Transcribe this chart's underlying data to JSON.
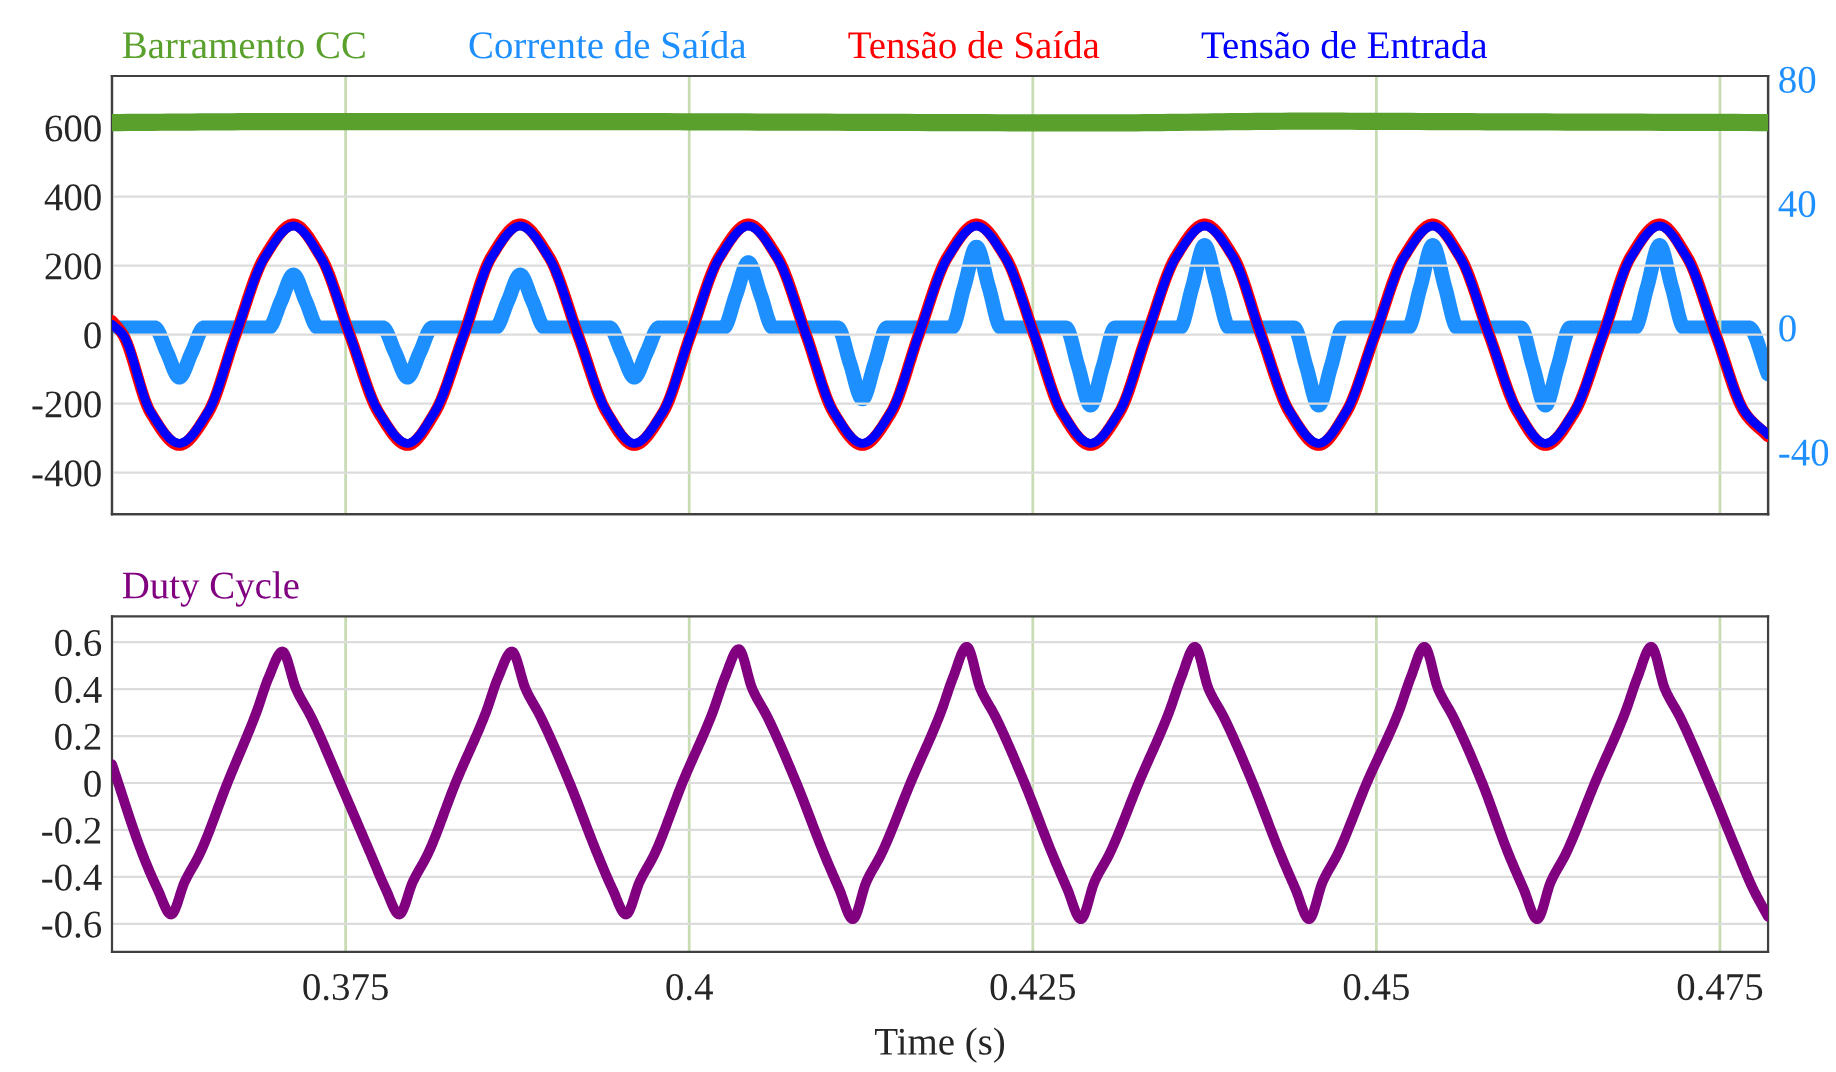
{
  "chart_data": [
    {
      "type": "line",
      "xlim": [
        0.358,
        0.4785
      ],
      "xticks": [
        {
          "value": 0.375,
          "label": null
        },
        {
          "value": 0.4,
          "label": null
        },
        {
          "value": 0.425,
          "label": null
        },
        {
          "value": 0.45,
          "label": null
        },
        {
          "value": 0.475,
          "label": null
        }
      ],
      "ylim": [
        -520,
        750
      ],
      "yticks": [
        -400,
        -200,
        0,
        200,
        400,
        600
      ],
      "y2lim": [
        -60,
        81
      ],
      "y2ticks": [
        -40,
        0,
        40,
        80
      ],
      "tick_labels": "y",
      "grid": true,
      "legend": "top",
      "line_style": "solid",
      "marker": "none",
      "x": [
        0.358,
        0.3588,
        0.3608,
        0.3629,
        0.365,
        0.367,
        0.3691,
        0.3712,
        0.3732,
        0.3753,
        0.3774,
        0.3795,
        0.3815,
        0.3836,
        0.3856,
        0.3877,
        0.3898,
        0.3919,
        0.394,
        0.396,
        0.3981,
        0.4001,
        0.4022,
        0.4043,
        0.4064,
        0.4085,
        0.4105,
        0.4126,
        0.4147,
        0.4167,
        0.4188,
        0.4209,
        0.423,
        0.4251,
        0.4271,
        0.4292,
        0.4313,
        0.4333,
        0.4354,
        0.4375,
        0.4396,
        0.4416,
        0.4437,
        0.4458,
        0.4478,
        0.4499,
        0.452,
        0.4541,
        0.4561,
        0.4582,
        0.4603,
        0.4623,
        0.4644,
        0.4665,
        0.4685,
        0.4706,
        0.4726,
        0.4747,
        0.4768,
        0.4785
      ],
      "series": [
        {
          "name": "Barramento CC",
          "color": "#5aa02c",
          "x": [
            0.358,
            0.372,
            0.39,
            0.41,
            0.43,
            0.445,
            0.46,
            0.4785
          ],
          "values": [
            615,
            618,
            618,
            616,
            614,
            619,
            617,
            615
          ]
        },
        {
          "name": "Corrente de Saída",
          "color": "#1e8fff",
          "axis": "y2",
          "x": [
            0.358,
            0.3611,
            0.362,
            0.3629,
            0.3638,
            0.3647,
            0.3694,
            0.3703,
            0.3712,
            0.3721,
            0.373,
            0.3777,
            0.3786,
            0.3795,
            0.3804,
            0.3813,
            0.3859,
            0.3868,
            0.3877,
            0.3886,
            0.3895,
            0.3942,
            0.3951,
            0.396,
            0.3969,
            0.3978,
            0.4025,
            0.4034,
            0.4043,
            0.4052,
            0.4061,
            0.4108,
            0.4117,
            0.4126,
            0.4135,
            0.4144,
            0.4191,
            0.42,
            0.4209,
            0.4218,
            0.4227,
            0.4274,
            0.4283,
            0.4292,
            0.4301,
            0.431,
            0.4357,
            0.4366,
            0.4375,
            0.4384,
            0.4393,
            0.444,
            0.4449,
            0.4458,
            0.4467,
            0.4476,
            0.4523,
            0.4532,
            0.4541,
            0.455,
            0.4559,
            0.4605,
            0.4614,
            0.4623,
            0.4632,
            0.4641,
            0.4688,
            0.4697,
            0.4706,
            0.4715,
            0.4724,
            0.4771,
            0.4785
          ],
          "values": [
            0,
            0,
            -8,
            -16,
            -8,
            0,
            0,
            8.5,
            17,
            8.5,
            0,
            0,
            -8,
            -16,
            -8,
            0,
            0,
            8.5,
            17,
            8.5,
            0,
            0,
            -8,
            -16,
            -8,
            0,
            0,
            10.5,
            21,
            10.5,
            0,
            0,
            -11.5,
            -23,
            -11.5,
            0,
            0,
            13,
            26,
            13,
            0,
            0,
            -12.5,
            -25,
            -12.5,
            0,
            0,
            13,
            26.5,
            13,
            0,
            0,
            -12.5,
            -25,
            -12.5,
            0,
            0,
            13,
            26.5,
            13,
            0,
            0,
            -12.5,
            -25,
            -12.5,
            0,
            0,
            13,
            26.5,
            13,
            0,
            0,
            -15
          ]
        },
        {
          "name": "Tensão de Saída",
          "color": "#ff0000",
          "values": [
            40,
            0,
            -226,
            -320,
            -226,
            0,
            226,
            320,
            226,
            0,
            -226,
            -320,
            -226,
            0,
            226,
            320,
            226,
            0,
            -226,
            -320,
            -226,
            0,
            226,
            320,
            226,
            0,
            -226,
            -320,
            -226,
            0,
            226,
            320,
            226,
            0,
            -226,
            -320,
            -226,
            0,
            226,
            320,
            226,
            0,
            -226,
            -320,
            -226,
            0,
            226,
            320,
            226,
            0,
            -226,
            -320,
            -226,
            0,
            226,
            320,
            226,
            0,
            -226,
            -295
          ]
        },
        {
          "name": "Tensão de Entrada",
          "color": "#0000ff",
          "values": [
            30,
            0,
            -223,
            -315,
            -223,
            0,
            223,
            315,
            223,
            0,
            -223,
            -315,
            -223,
            0,
            223,
            315,
            223,
            0,
            -223,
            -315,
            -223,
            0,
            223,
            315,
            223,
            0,
            -223,
            -315,
            -223,
            0,
            223,
            315,
            223,
            0,
            -223,
            -315,
            -223,
            0,
            223,
            315,
            223,
            0,
            -223,
            -315,
            -223,
            0,
            223,
            315,
            223,
            0,
            -223,
            -315,
            -223,
            0,
            223,
            315,
            223,
            0,
            -223,
            -290
          ]
        }
      ]
    },
    {
      "type": "line",
      "xlim": [
        0.358,
        0.4785
      ],
      "xticks": [
        0.375,
        {
          "value": 0.4,
          "label": "0.4"
        },
        0.425,
        {
          "value": 0.45,
          "label": "0.45"
        },
        0.475
      ],
      "ylim": [
        -0.72,
        0.71
      ],
      "yticks": [
        -0.6,
        -0.4,
        -0.2,
        0,
        0.2,
        0.4,
        0.6
      ],
      "xlabel": "Time (s)",
      "grid": true,
      "legend": "top left",
      "line_style": "solid",
      "marker": "none",
      "series": [
        {
          "name": "Duty Cycle",
          "color": "#800080",
          "x": [
            0.358,
            0.3602,
            0.3613,
            0.3623,
            0.3633,
            0.3644,
            0.3664,
            0.3685,
            0.3694,
            0.3704,
            0.3714,
            0.3725,
            0.3746,
            0.3768,
            0.3779,
            0.3789,
            0.3799,
            0.381,
            0.383,
            0.3852,
            0.3861,
            0.3871,
            0.3881,
            0.3892,
            0.3913,
            0.3933,
            0.3944,
            0.3954,
            0.3964,
            0.3975,
            0.3995,
            0.4017,
            0.4026,
            0.4036,
            0.4046,
            0.4057,
            0.4078,
            0.4098,
            0.4109,
            0.4119,
            0.4129,
            0.414,
            0.4161,
            0.4183,
            0.4192,
            0.4202,
            0.4212,
            0.4223,
            0.4244,
            0.4264,
            0.4275,
            0.4285,
            0.4295,
            0.4306,
            0.4327,
            0.4349,
            0.4358,
            0.4368,
            0.4378,
            0.4389,
            0.441,
            0.443,
            0.4441,
            0.4451,
            0.4461,
            0.4472,
            0.4493,
            0.4516,
            0.4525,
            0.4535,
            0.4545,
            0.4556,
            0.4577,
            0.4596,
            0.4607,
            0.4617,
            0.4627,
            0.4638,
            0.4659,
            0.4681,
            0.469,
            0.47,
            0.471,
            0.4721,
            0.4742,
            0.4763,
            0.4774,
            0.4785
          ],
          "values": [
            0.08,
            -0.3,
            -0.45,
            -0.56,
            -0.42,
            -0.3,
            0,
            0.3,
            0.45,
            0.56,
            0.4,
            0.28,
            0,
            -0.3,
            -0.45,
            -0.56,
            -0.42,
            -0.3,
            0,
            0.3,
            0.45,
            0.56,
            0.4,
            0.28,
            0,
            -0.3,
            -0.45,
            -0.56,
            -0.42,
            -0.3,
            0,
            0.3,
            0.45,
            0.57,
            0.4,
            0.28,
            0,
            -0.3,
            -0.45,
            -0.58,
            -0.42,
            -0.3,
            0,
            0.3,
            0.45,
            0.58,
            0.4,
            0.28,
            0,
            -0.3,
            -0.45,
            -0.58,
            -0.42,
            -0.3,
            0,
            0.3,
            0.45,
            0.58,
            0.4,
            0.28,
            0,
            -0.3,
            -0.45,
            -0.58,
            -0.42,
            -0.3,
            0,
            0.3,
            0.45,
            0.58,
            0.4,
            0.28,
            0,
            -0.3,
            -0.45,
            -0.58,
            -0.42,
            -0.3,
            0,
            0.3,
            0.45,
            0.58,
            0.4,
            0.28,
            0,
            -0.3,
            -0.45,
            -0.57
          ]
        }
      ]
    }
  ]
}
